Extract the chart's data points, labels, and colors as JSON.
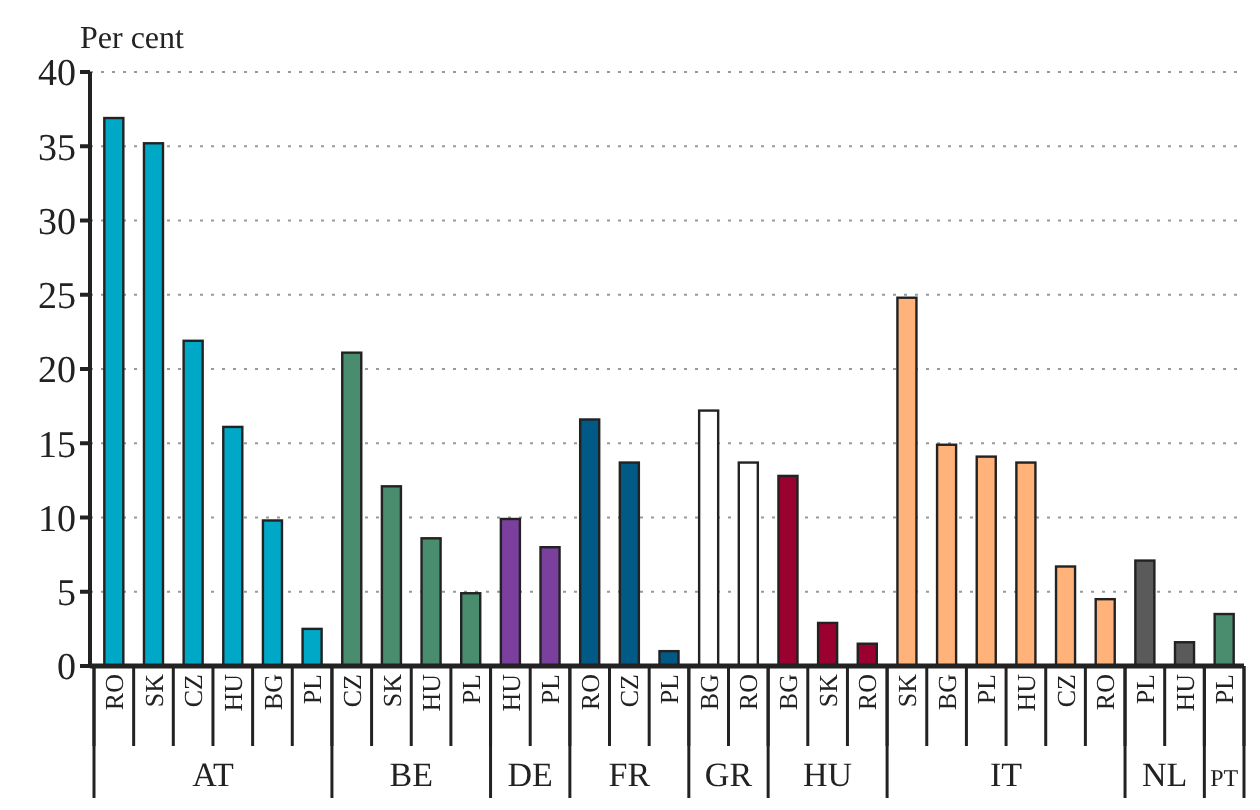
{
  "chart_data": {
    "type": "bar",
    "ylabel": "Per cent",
    "categories": [
      "RO",
      "SK",
      "CZ",
      "HU",
      "BG",
      "PL",
      "CZ",
      "SK",
      "HU",
      "PL",
      "HU",
      "PL",
      "RO",
      "CZ",
      "PL",
      "BG",
      "RO",
      "BG",
      "SK",
      "RO",
      "SK",
      "BG",
      "PL",
      "HU",
      "CZ",
      "RO",
      "PL",
      "HU",
      "PL"
    ],
    "series": [
      {
        "name": "AT",
        "color": "#00a8c8",
        "values": [
          36.9,
          35.2,
          21.9,
          16.1,
          9.8,
          2.5,
          null,
          null,
          null,
          null,
          null,
          null,
          null,
          null,
          null,
          null,
          null,
          null,
          null,
          null,
          null,
          null,
          null,
          null,
          null,
          null,
          null,
          null,
          null
        ]
      },
      {
        "name": "BE",
        "color": "#4a8c6e",
        "values": [
          null,
          null,
          null,
          null,
          null,
          null,
          21.1,
          12.1,
          8.6,
          4.9,
          null,
          null,
          null,
          null,
          null,
          null,
          null,
          null,
          null,
          null,
          null,
          null,
          null,
          null,
          null,
          null,
          null,
          null,
          null
        ]
      },
      {
        "name": "DE",
        "color": "#7b3f9e",
        "values": [
          null,
          null,
          null,
          null,
          null,
          null,
          null,
          null,
          null,
          null,
          9.9,
          8.0,
          null,
          null,
          null,
          null,
          null,
          null,
          null,
          null,
          null,
          null,
          null,
          null,
          null,
          null,
          null,
          null,
          null
        ]
      },
      {
        "name": "FR",
        "color": "#005a85",
        "values": [
          null,
          null,
          null,
          null,
          null,
          null,
          null,
          null,
          null,
          null,
          null,
          null,
          16.6,
          13.7,
          1.0,
          null,
          null,
          null,
          null,
          null,
          null,
          null,
          null,
          null,
          null,
          null,
          null,
          null,
          null
        ]
      },
      {
        "name": "GR",
        "color": "#ffffff",
        "values": [
          null,
          null,
          null,
          null,
          null,
          null,
          null,
          null,
          null,
          null,
          null,
          null,
          null,
          null,
          null,
          17.2,
          13.7,
          null,
          null,
          null,
          null,
          null,
          null,
          null,
          null,
          null,
          null,
          null,
          null
        ]
      },
      {
        "name": "HU",
        "color": "#9a0030",
        "values": [
          null,
          null,
          null,
          null,
          null,
          null,
          null,
          null,
          null,
          null,
          null,
          null,
          null,
          null,
          null,
          null,
          null,
          12.8,
          2.9,
          1.5,
          null,
          null,
          null,
          null,
          null,
          null,
          null,
          null,
          null
        ]
      },
      {
        "name": "IT",
        "color": "#ffb27a",
        "values": [
          null,
          null,
          null,
          null,
          null,
          null,
          null,
          null,
          null,
          null,
          null,
          null,
          null,
          null,
          null,
          null,
          null,
          null,
          null,
          null,
          24.8,
          14.9,
          14.1,
          13.7,
          6.7,
          4.5,
          null,
          null,
          null
        ]
      },
      {
        "name": "NL",
        "color": "#5a5a5a",
        "values": [
          null,
          null,
          null,
          null,
          null,
          null,
          null,
          null,
          null,
          null,
          null,
          null,
          null,
          null,
          null,
          null,
          null,
          null,
          null,
          null,
          null,
          null,
          null,
          null,
          null,
          null,
          7.1,
          1.6,
          null
        ]
      },
      {
        "name": "PT",
        "color": "#4a8c6e",
        "values": [
          null,
          null,
          null,
          null,
          null,
          null,
          null,
          null,
          null,
          null,
          null,
          null,
          null,
          null,
          null,
          null,
          null,
          null,
          null,
          null,
          null,
          null,
          null,
          null,
          null,
          null,
          null,
          null,
          3.5
        ]
      }
    ],
    "ylim": [
      0,
      40
    ],
    "yticks": [
      0,
      5,
      10,
      15,
      20,
      25,
      30,
      35,
      40
    ],
    "grid": "y",
    "legend": "bottom"
  }
}
